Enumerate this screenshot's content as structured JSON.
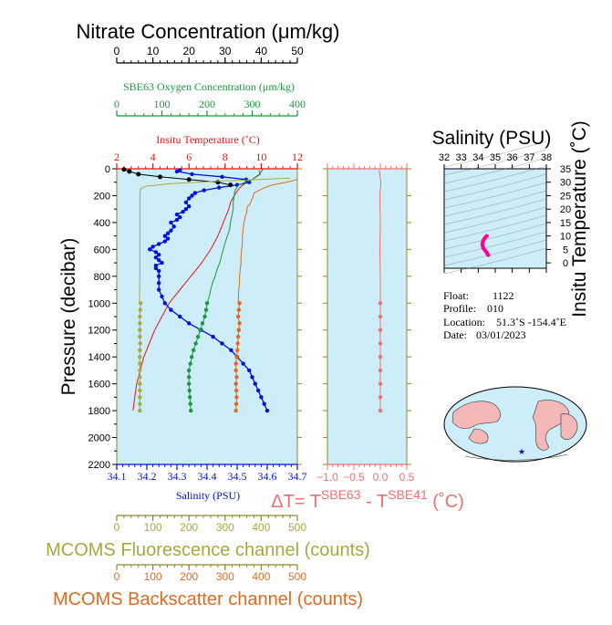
{
  "colors": {
    "plot_bg": "#cdeef8",
    "nitrate": "#000000",
    "oxygen": "#1a9a3a",
    "temperature": "#ee1111",
    "salinity": "#0011dd",
    "delta": "#f07070",
    "fluorescence": "#a8a840",
    "backscatter": "#e06a20",
    "frame": "#8a8a2a"
  },
  "chart_data": [
    {
      "type": "line",
      "name": "profile",
      "ylabel": "Pressure (decibar)",
      "ylim": [
        2200,
        0
      ],
      "yticks": [
        "0",
        "200",
        "400",
        "600",
        "800",
        "1000",
        "1200",
        "1400",
        "1600",
        "1800",
        "2000",
        "2200"
      ],
      "axes": {
        "nitrate": {
          "label": "Nitrate Concentration (μm/kg)",
          "range": [
            0,
            50
          ],
          "ticks": [
            "0",
            "10",
            "20",
            "30",
            "40",
            "50"
          ]
        },
        "oxygen": {
          "label": "SBE63 Oxygen Concentration (μm/kg)",
          "range": [
            0,
            400
          ],
          "ticks": [
            "0",
            "100",
            "200",
            "300",
            "400"
          ]
        },
        "temperature": {
          "label": "Insitu Temperature (˚C)",
          "range": [
            2,
            12
          ],
          "ticks": [
            "2",
            "4",
            "6",
            "8",
            "10",
            "12"
          ]
        },
        "salinity": {
          "label": "Salinity (PSU)",
          "range": [
            34.1,
            34.7
          ],
          "ticks": [
            "34.1",
            "34.2",
            "34.3",
            "34.4",
            "34.5",
            "34.6",
            "34.7"
          ]
        },
        "fluorescence": {
          "label": "MCOMS Fluorescence channel (counts)",
          "range": [
            0,
            500
          ],
          "ticks": [
            "0",
            "100",
            "200",
            "300",
            "400",
            "500"
          ]
        },
        "backscatter": {
          "label": "MCOMS Backscatter channel (counts)",
          "range": [
            0,
            500
          ],
          "ticks": [
            "0",
            "100",
            "200",
            "300",
            "400",
            "500"
          ]
        }
      },
      "series": [
        {
          "key": "temperature",
          "p": [
            5,
            20,
            40,
            60,
            80,
            100,
            130,
            160,
            200,
            250,
            300,
            400,
            500,
            600,
            700,
            800,
            900,
            1000,
            1100,
            1200,
            1300,
            1400,
            1500,
            1600,
            1700,
            1800
          ],
          "v": [
            10.1,
            10.0,
            9.9,
            9.7,
            9.5,
            9.2,
            8.9,
            8.7,
            8.5,
            8.3,
            8.2,
            7.9,
            7.6,
            7.2,
            6.7,
            6.1,
            5.5,
            4.9,
            4.5,
            4.1,
            3.8,
            3.5,
            3.3,
            3.1,
            3.0,
            2.9
          ]
        },
        {
          "key": "salinity",
          "p": [
            10,
            20,
            40,
            60,
            80,
            100,
            120,
            140,
            160,
            180,
            200,
            220,
            250,
            280,
            300,
            320,
            340,
            360,
            380,
            400,
            430,
            460,
            480,
            500,
            520,
            540,
            560,
            580,
            600,
            620,
            640,
            660,
            680,
            700,
            720,
            740,
            760,
            800,
            850,
            900,
            950,
            1000,
            1050,
            1100,
            1150,
            1200,
            1250,
            1300,
            1350,
            1400,
            1450,
            1500,
            1550,
            1600,
            1650,
            1700,
            1750,
            1800
          ],
          "v": [
            34.31,
            34.3,
            34.35,
            34.45,
            34.53,
            34.54,
            34.5,
            34.44,
            34.39,
            34.36,
            34.35,
            34.34,
            34.33,
            34.34,
            34.33,
            34.32,
            34.3,
            34.31,
            34.3,
            34.28,
            34.29,
            34.28,
            34.27,
            34.26,
            34.27,
            34.26,
            34.24,
            34.22,
            34.21,
            34.23,
            34.24,
            34.23,
            34.24,
            34.25,
            34.23,
            34.23,
            34.24,
            34.24,
            34.24,
            34.24,
            34.25,
            34.26,
            34.28,
            34.31,
            34.34,
            34.38,
            34.42,
            34.45,
            34.48,
            34.5,
            34.52,
            34.54,
            34.55,
            34.56,
            34.57,
            34.58,
            34.59,
            34.6
          ]
        },
        {
          "key": "oxygen",
          "p": [
            10,
            40,
            80,
            120,
            160,
            200,
            250,
            300,
            350,
            400,
            450,
            500,
            550,
            600,
            650,
            700,
            750,
            800,
            850,
            900,
            950,
            1000
          ],
          "v": [
            315,
            318,
            300,
            270,
            262,
            260,
            258,
            258,
            255,
            252,
            250,
            245,
            240,
            236,
            232,
            228,
            222,
            218,
            212,
            208,
            205,
            200
          ]
        },
        {
          "key": "oxygen",
          "marker": true,
          "p": [
            1000,
            1050,
            1100,
            1150,
            1200,
            1250,
            1300,
            1350,
            1400,
            1450,
            1500,
            1550,
            1600,
            1650,
            1700,
            1750,
            1800
          ],
          "v": [
            200,
            198,
            195,
            190,
            185,
            180,
            175,
            170,
            166,
            163,
            160,
            160,
            160,
            161,
            162,
            163,
            164
          ]
        },
        {
          "key": "nitrate",
          "p": [
            5,
            20,
            40,
            60,
            80,
            100,
            120
          ],
          "v": [
            2.0,
            3.5,
            6.0,
            12.0,
            20.0,
            28.0,
            31.5
          ]
        },
        {
          "key": "backscatter",
          "p": [
            80,
            100,
            120,
            140,
            160,
            180,
            200,
            220,
            240,
            260,
            280,
            300,
            320,
            340,
            360,
            380,
            400,
            450,
            500,
            550,
            600,
            650,
            700,
            750,
            800,
            850,
            900,
            950,
            1000
          ],
          "v": [
            500,
            470,
            430,
            410,
            395,
            380,
            378,
            376,
            372,
            370,
            362,
            360,
            360,
            358,
            355,
            354,
            352,
            350,
            348,
            348,
            346,
            344,
            344,
            342,
            340,
            340,
            338,
            337,
            336
          ]
        },
        {
          "key": "backscatter",
          "marker": true,
          "p": [
            1000,
            1050,
            1100,
            1150,
            1200,
            1250,
            1300,
            1350,
            1400,
            1450,
            1500,
            1550,
            1600,
            1650,
            1700,
            1750,
            1800
          ],
          "v": [
            340,
            338,
            336,
            340,
            338,
            336,
            335,
            334,
            332,
            330,
            330,
            332,
            330,
            331,
            332,
            331,
            330
          ]
        },
        {
          "key": "fluorescence",
          "p": [
            70,
            90,
            110,
            130,
            150,
            200,
            400,
            600,
            800,
            1000
          ],
          "v": [
            480,
            300,
            150,
            80,
            66,
            64,
            64,
            64,
            64,
            63
          ]
        },
        {
          "key": "fluorescence",
          "marker": true,
          "p": [
            1000,
            1050,
            1100,
            1150,
            1200,
            1250,
            1300,
            1350,
            1400,
            1450,
            1500,
            1550,
            1600,
            1650,
            1700,
            1750,
            1800
          ],
          "v": [
            66,
            65,
            64,
            64,
            64,
            64,
            65,
            64,
            64,
            64,
            64,
            64,
            64,
            64,
            64,
            64,
            64
          ]
        }
      ]
    },
    {
      "type": "line",
      "name": "delta",
      "xlabel_prefix": "ΔT= T",
      "sup1": "SBE63",
      "xlabel_mid": " - T",
      "sup2": "SBE41",
      "xlabel_suffix": " (˚C)",
      "xlim": [
        -1.0,
        0.5
      ],
      "xticks": [
        "−1.0",
        "−0.5",
        "0.0",
        "0.5"
      ],
      "series": [
        {
          "key": "delta",
          "p": [
            10,
            100,
            200,
            400,
            600,
            800,
            1000,
            1200,
            1400,
            1600,
            1800
          ],
          "v": [
            -0.02,
            0.01,
            -0.01,
            0.0,
            -0.01,
            0.0,
            0.0,
            0.0,
            0.0,
            0.0,
            0.0
          ]
        },
        {
          "key": "delta",
          "marker": true,
          "p": [
            1000,
            1100,
            1200,
            1300,
            1400,
            1500,
            1600,
            1700,
            1800
          ],
          "v": [
            0.0,
            0.0,
            0.0,
            0.0,
            0.0,
            0.0,
            0.0,
            0.0,
            0.0
          ]
        }
      ]
    },
    {
      "type": "scatter",
      "name": "ts_diagram",
      "xlabel": "Salinity (PSU)",
      "ylabel": "Insitu Temperature (˚C)",
      "xticks": [
        "32",
        "33",
        "34",
        "35",
        "36",
        "37",
        "38"
      ],
      "yticks": [
        "35",
        "30",
        "25",
        "20",
        "15",
        "10",
        "5",
        "0"
      ],
      "xlim": [
        32,
        38
      ],
      "ylim": [
        -2,
        35
      ],
      "points": [
        [
          34.58,
          2.9
        ],
        [
          34.55,
          3.3
        ],
        [
          34.5,
          3.8
        ],
        [
          34.42,
          4.5
        ],
        [
          34.3,
          5.5
        ],
        [
          34.24,
          6.7
        ],
        [
          34.26,
          7.6
        ],
        [
          34.31,
          8.5
        ],
        [
          34.4,
          9.3
        ],
        [
          34.5,
          10.0
        ]
      ],
      "color": "#ff0090"
    }
  ],
  "meta": {
    "float_label": "Float:",
    "float_value": "1122",
    "profile_label": "Profile:",
    "profile_value": "010",
    "location_label": "Location:",
    "location_value": "51.3˚S  -154.4˚E",
    "date_label": "Date:",
    "date_value": "03/01/2023"
  }
}
